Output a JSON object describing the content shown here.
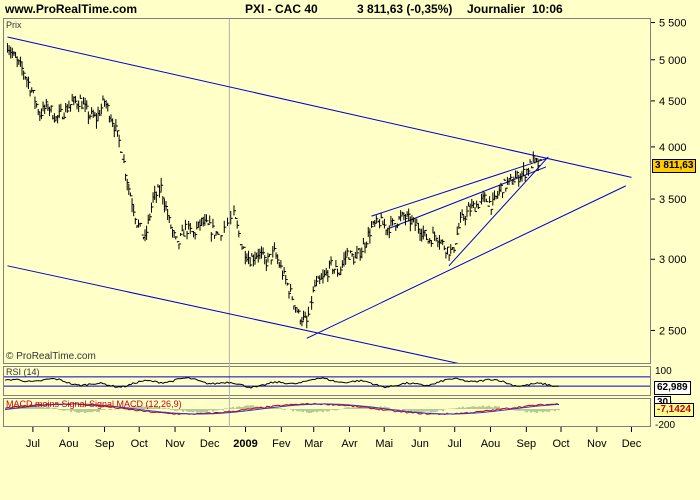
{
  "header": {
    "site": "www.ProRealTime.com",
    "instrument": "PXI - CAC 40",
    "quote": "3 811,63 (-0,35%)",
    "period": "Journalier",
    "time": "10:06"
  },
  "price_pane": {
    "label": "Prix",
    "copyright": "© ProRealTime.com",
    "last_tag": "3 811,63"
  },
  "rsi_pane": {
    "label": "RSI (14)",
    "value_tag": "62,989",
    "level_tag": "30"
  },
  "macd_pane": {
    "label": "MACD moins Signal Signal MACD (12,26,9)",
    "value_tag": "-7,1424"
  },
  "colors": {
    "background": "#ffffc8",
    "trendline": "#0000cc",
    "bars": "#000000",
    "price_tag": "#ffcc00",
    "macd_line": "#cc0000",
    "signal_line": "#3333cc"
  },
  "chart_data": {
    "type": "line",
    "title": "PXI - CAC 40",
    "x_tick_labels": [
      "Jul",
      "Aou",
      "Sep",
      "Oct",
      "Nov",
      "Dec",
      "2009",
      "Fev",
      "Mar",
      "Avr",
      "Mai",
      "Jun",
      "Jul",
      "Aou",
      "Sep",
      "Oct",
      "Nov",
      "Dec"
    ],
    "y_tick_labels": [
      "5 500",
      "5 000",
      "4 500",
      "4 000",
      "3 500",
      "3 000",
      "2 500"
    ],
    "ylim": [
      2300,
      5550
    ],
    "rsi_ticks": [
      "100",
      "0"
    ],
    "macd_ticks": [
      "200",
      "-200"
    ],
    "series": [
      {
        "name": "CAC 40",
        "points": [
          [
            "2008-06-23",
            5200
          ],
          [
            "2008-06-30",
            5000
          ],
          [
            "2008-07-07",
            4850
          ],
          [
            "2008-07-14",
            4620
          ],
          [
            "2008-07-21",
            4350
          ],
          [
            "2008-07-28",
            4450
          ],
          [
            "2008-08-04",
            4300
          ],
          [
            "2008-08-11",
            4380
          ],
          [
            "2008-08-18",
            4480
          ],
          [
            "2008-08-25",
            4500
          ],
          [
            "2008-09-01",
            4350
          ],
          [
            "2008-09-08",
            4300
          ],
          [
            "2008-09-15",
            4500
          ],
          [
            "2008-09-22",
            4280
          ],
          [
            "2008-09-29",
            4000
          ],
          [
            "2008-10-06",
            3600
          ],
          [
            "2008-10-13",
            3300
          ],
          [
            "2008-10-20",
            3150
          ],
          [
            "2008-10-27",
            3500
          ],
          [
            "2008-11-03",
            3600
          ],
          [
            "2008-11-10",
            3300
          ],
          [
            "2008-11-17",
            3100
          ],
          [
            "2008-11-24",
            3250
          ],
          [
            "2008-12-01",
            3200
          ],
          [
            "2008-12-08",
            3300
          ],
          [
            "2008-12-15",
            3250
          ],
          [
            "2008-12-22",
            3200
          ],
          [
            "2009-01-05",
            3350
          ],
          [
            "2009-01-12",
            3100
          ],
          [
            "2009-01-19",
            3000
          ],
          [
            "2009-01-26",
            3050
          ],
          [
            "2009-02-02",
            2980
          ],
          [
            "2009-02-09",
            3050
          ],
          [
            "2009-02-16",
            2900
          ],
          [
            "2009-02-23",
            2750
          ],
          [
            "2009-03-02",
            2600
          ],
          [
            "2009-03-09",
            2550
          ],
          [
            "2009-03-16",
            2800
          ],
          [
            "2009-03-23",
            2850
          ],
          [
            "2009-03-30",
            2950
          ],
          [
            "2009-04-06",
            2900
          ],
          [
            "2009-04-13",
            3050
          ],
          [
            "2009-04-20",
            3000
          ],
          [
            "2009-04-27",
            3100
          ],
          [
            "2009-05-04",
            3250
          ],
          [
            "2009-05-11",
            3300
          ],
          [
            "2009-05-18",
            3250
          ],
          [
            "2009-05-25",
            3300
          ],
          [
            "2009-06-01",
            3350
          ],
          [
            "2009-06-08",
            3300
          ],
          [
            "2009-06-15",
            3250
          ],
          [
            "2009-06-22",
            3150
          ],
          [
            "2009-06-29",
            3200
          ],
          [
            "2009-07-06",
            3100
          ],
          [
            "2009-07-13",
            3050
          ],
          [
            "2009-07-20",
            3300
          ],
          [
            "2009-07-27",
            3400
          ],
          [
            "2009-08-03",
            3450
          ],
          [
            "2009-08-10",
            3500
          ],
          [
            "2009-08-17",
            3450
          ],
          [
            "2009-08-24",
            3600
          ],
          [
            "2009-08-31",
            3650
          ],
          [
            "2009-09-07",
            3700
          ],
          [
            "2009-09-14",
            3750
          ],
          [
            "2009-09-21",
            3850
          ],
          [
            "2009-09-28",
            3811.63
          ]
        ]
      }
    ],
    "trendlines": [
      [
        [
          "2008-06-23",
          5300
        ],
        [
          "2009-12-15",
          3700
        ]
      ],
      [
        [
          "2008-06-23",
          2950
        ],
        [
          "2009-07-30",
          2280
        ]
      ],
      [
        [
          "2009-03-09",
          2450
        ],
        [
          "2009-12-10",
          3620
        ]
      ],
      [
        [
          "2009-05-04",
          3350
        ],
        [
          "2009-10-02",
          3880
        ]
      ],
      [
        [
          "2009-05-20",
          3250
        ],
        [
          "2009-10-02",
          3800
        ]
      ],
      [
        [
          "2009-07-10",
          2950
        ],
        [
          "2009-10-04",
          3900
        ]
      ]
    ]
  }
}
